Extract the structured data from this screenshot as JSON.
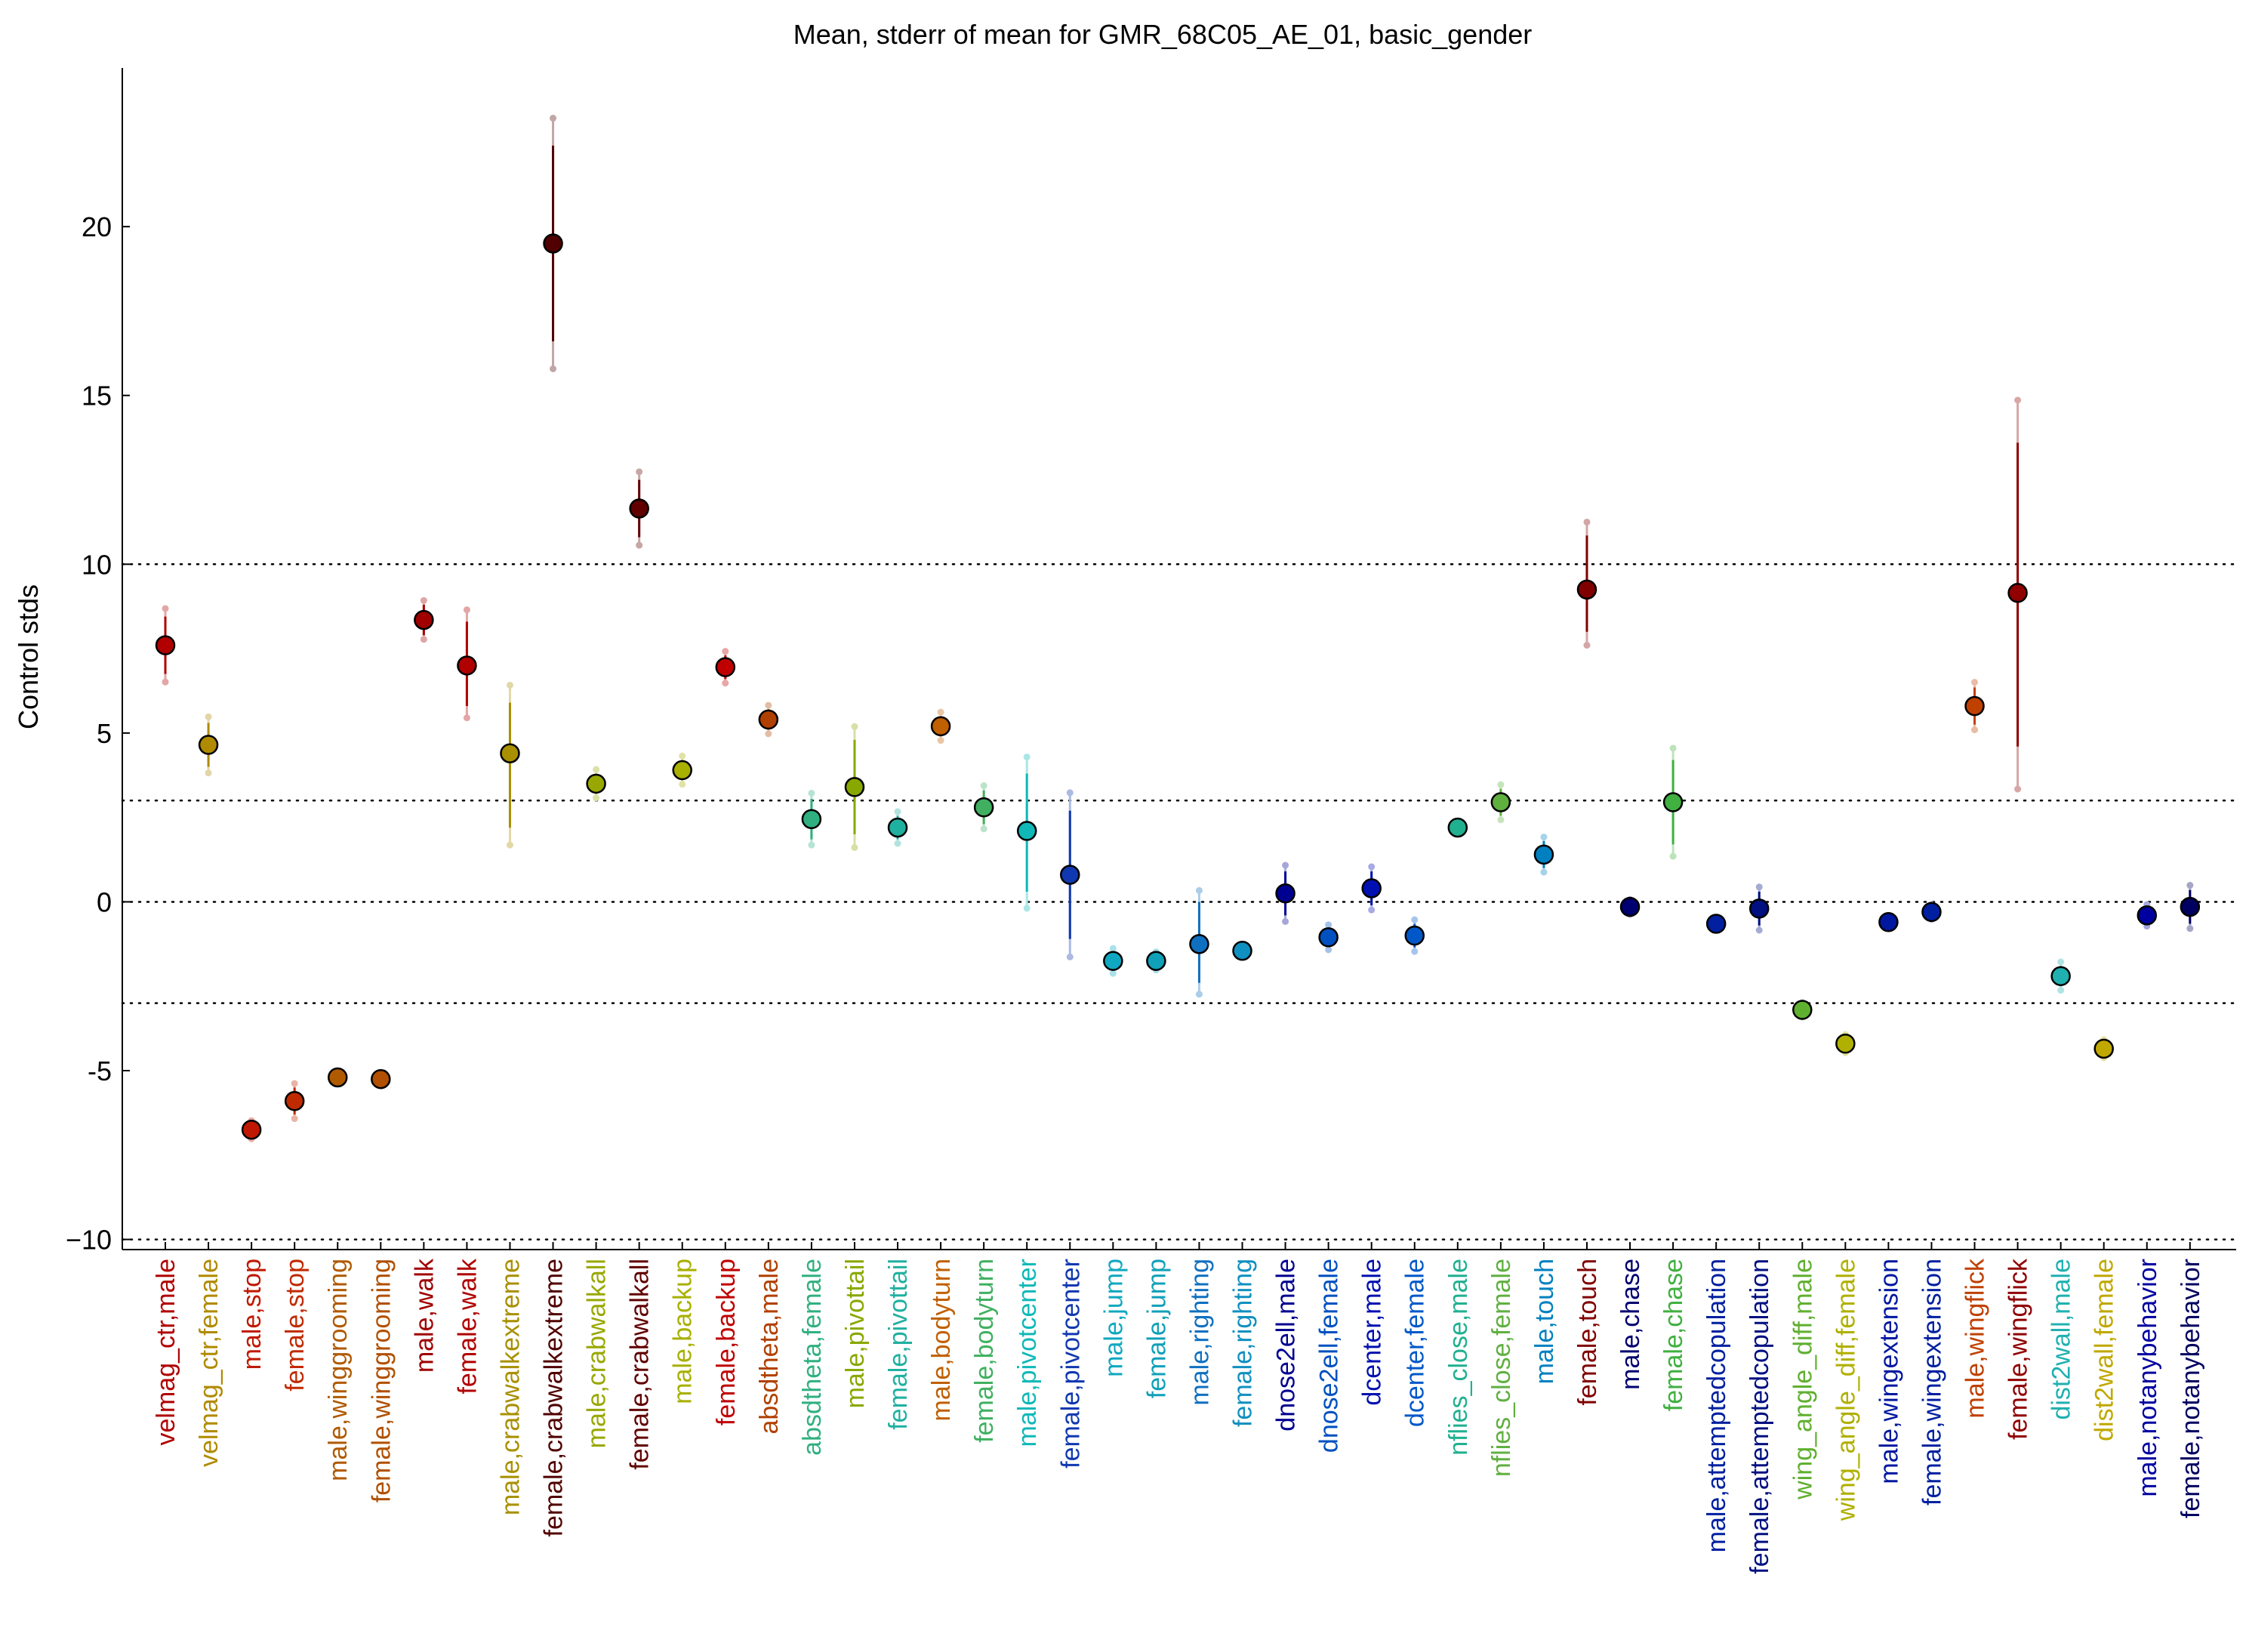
{
  "chart_data": {
    "type": "scatter",
    "title": "Mean, stderr of mean for GMR_68C05_AE_01, basic_gender",
    "xlabel": "",
    "ylabel": "Control stds",
    "ylim": [
      -10.3,
      24.7
    ],
    "yticks": [
      -10,
      -5,
      0,
      5,
      10,
      15,
      20
    ],
    "ytick_labels": [
      "−10",
      "-5",
      "0",
      "5",
      "10",
      "15",
      "20"
    ],
    "reference_lines": [
      -10,
      -3,
      0,
      3,
      10
    ],
    "grid": false,
    "legend": "none",
    "categories": [
      "velmag_ctr,male",
      "velmag_ctr,female",
      "male,stop",
      "female,stop",
      "male,winggrooming",
      "female,winggrooming",
      "male,walk",
      "female,walk",
      "male,crabwalkextreme",
      "female,crabwalkextreme",
      "male,crabwalkall",
      "female,crabwalkall",
      "male,backup",
      "female,backup",
      "absdtheta,male",
      "absdtheta,female",
      "male,pivottail",
      "female,pivottail",
      "male,bodyturn",
      "female,bodyturn",
      "male,pivotcenter",
      "female,pivotcenter",
      "male,jump",
      "female,jump",
      "male,righting",
      "female,righting",
      "dnose2ell,male",
      "dnose2ell,female",
      "dcenter,male",
      "dcenter,female",
      "nflies_close,male",
      "nflies_close,female",
      "male,touch",
      "female,touch",
      "male,chase",
      "female,chase",
      "male,attemptedcopulation",
      "female,attemptedcopulation",
      "wing_angle_diff,male",
      "wing_angle_diff,female",
      "male,wingextension",
      "female,wingextension",
      "male,wingflick",
      "female,wingflick",
      "dist2wall,male",
      "dist2wall,female",
      "male,notanybehavior",
      "female,notanybehavior"
    ],
    "mean": [
      7.6,
      4.65,
      -6.75,
      -5.9,
      -5.2,
      -5.25,
      8.35,
      7.0,
      4.4,
      19.5,
      3.5,
      11.65,
      3.9,
      6.95,
      5.4,
      2.45,
      3.4,
      2.2,
      5.2,
      2.8,
      2.1,
      0.8,
      -1.75,
      -1.75,
      -1.25,
      -1.45,
      0.25,
      -1.05,
      0.4,
      -1.0,
      2.2,
      2.95,
      1.4,
      9.25,
      -0.15,
      2.95,
      -0.65,
      -0.2,
      -3.2,
      -4.2,
      -0.6,
      -0.3,
      5.8,
      9.15,
      -2.2,
      -4.35,
      -0.4,
      -0.15
    ],
    "err_low": [
      6.75,
      4.0,
      -6.9,
      -6.3,
      -5.2,
      -5.3,
      7.9,
      5.8,
      2.2,
      16.6,
      3.2,
      10.8,
      3.6,
      6.6,
      5.1,
      1.85,
      2.0,
      1.85,
      4.9,
      2.3,
      0.3,
      -1.1,
      -2.0,
      -1.9,
      -2.4,
      -1.5,
      -0.4,
      -1.3,
      -0.1,
      -1.35,
      2.2,
      2.55,
      1.0,
      8.0,
      -0.25,
      1.7,
      -0.7,
      -0.7,
      -3.3,
      -4.35,
      -0.65,
      -0.4,
      5.25,
      4.6,
      -2.5,
      -4.5,
      -0.6,
      -0.65
    ],
    "err_high": [
      8.45,
      5.3,
      -6.6,
      -5.5,
      -5.2,
      -5.2,
      8.8,
      8.3,
      5.9,
      22.4,
      3.8,
      12.5,
      4.2,
      7.3,
      5.7,
      3.05,
      4.8,
      2.55,
      5.5,
      3.3,
      3.8,
      2.7,
      -1.5,
      -1.6,
      0.0,
      -1.4,
      0.9,
      -0.8,
      0.9,
      -0.65,
      2.2,
      3.35,
      1.8,
      10.85,
      -0.05,
      4.2,
      -0.6,
      0.3,
      -3.1,
      -4.05,
      -0.55,
      -0.2,
      6.35,
      13.6,
      -1.9,
      -4.2,
      -0.2,
      0.35
    ],
    "colors": [
      "#b00000",
      "#b08a00",
      "#c01800",
      "#c02a00",
      "#b05a00",
      "#b05000",
      "#a00000",
      "#b00000",
      "#a89000",
      "#500000",
      "#98a800",
      "#600000",
      "#a8b000",
      "#c00000",
      "#b04000",
      "#30b080",
      "#88a800",
      "#20b0a0",
      "#c06000",
      "#40b060",
      "#10b8b8",
      "#1038b0",
      "#10a8c0",
      "#10a0b8",
      "#1070c0",
      "#1090c0",
      "#000090",
      "#0050c0",
      "#0010b0",
      "#0058c8",
      "#20b090",
      "#60b040",
      "#0080c0",
      "#800000",
      "#000070",
      "#40b040",
      "#0020a0",
      "#001080",
      "#60b030",
      "#b0b000",
      "#0018a0",
      "#0020a0",
      "#c04000",
      "#900000",
      "#20b0b0",
      "#c0a800",
      "#0000a0",
      "#000060"
    ]
  }
}
